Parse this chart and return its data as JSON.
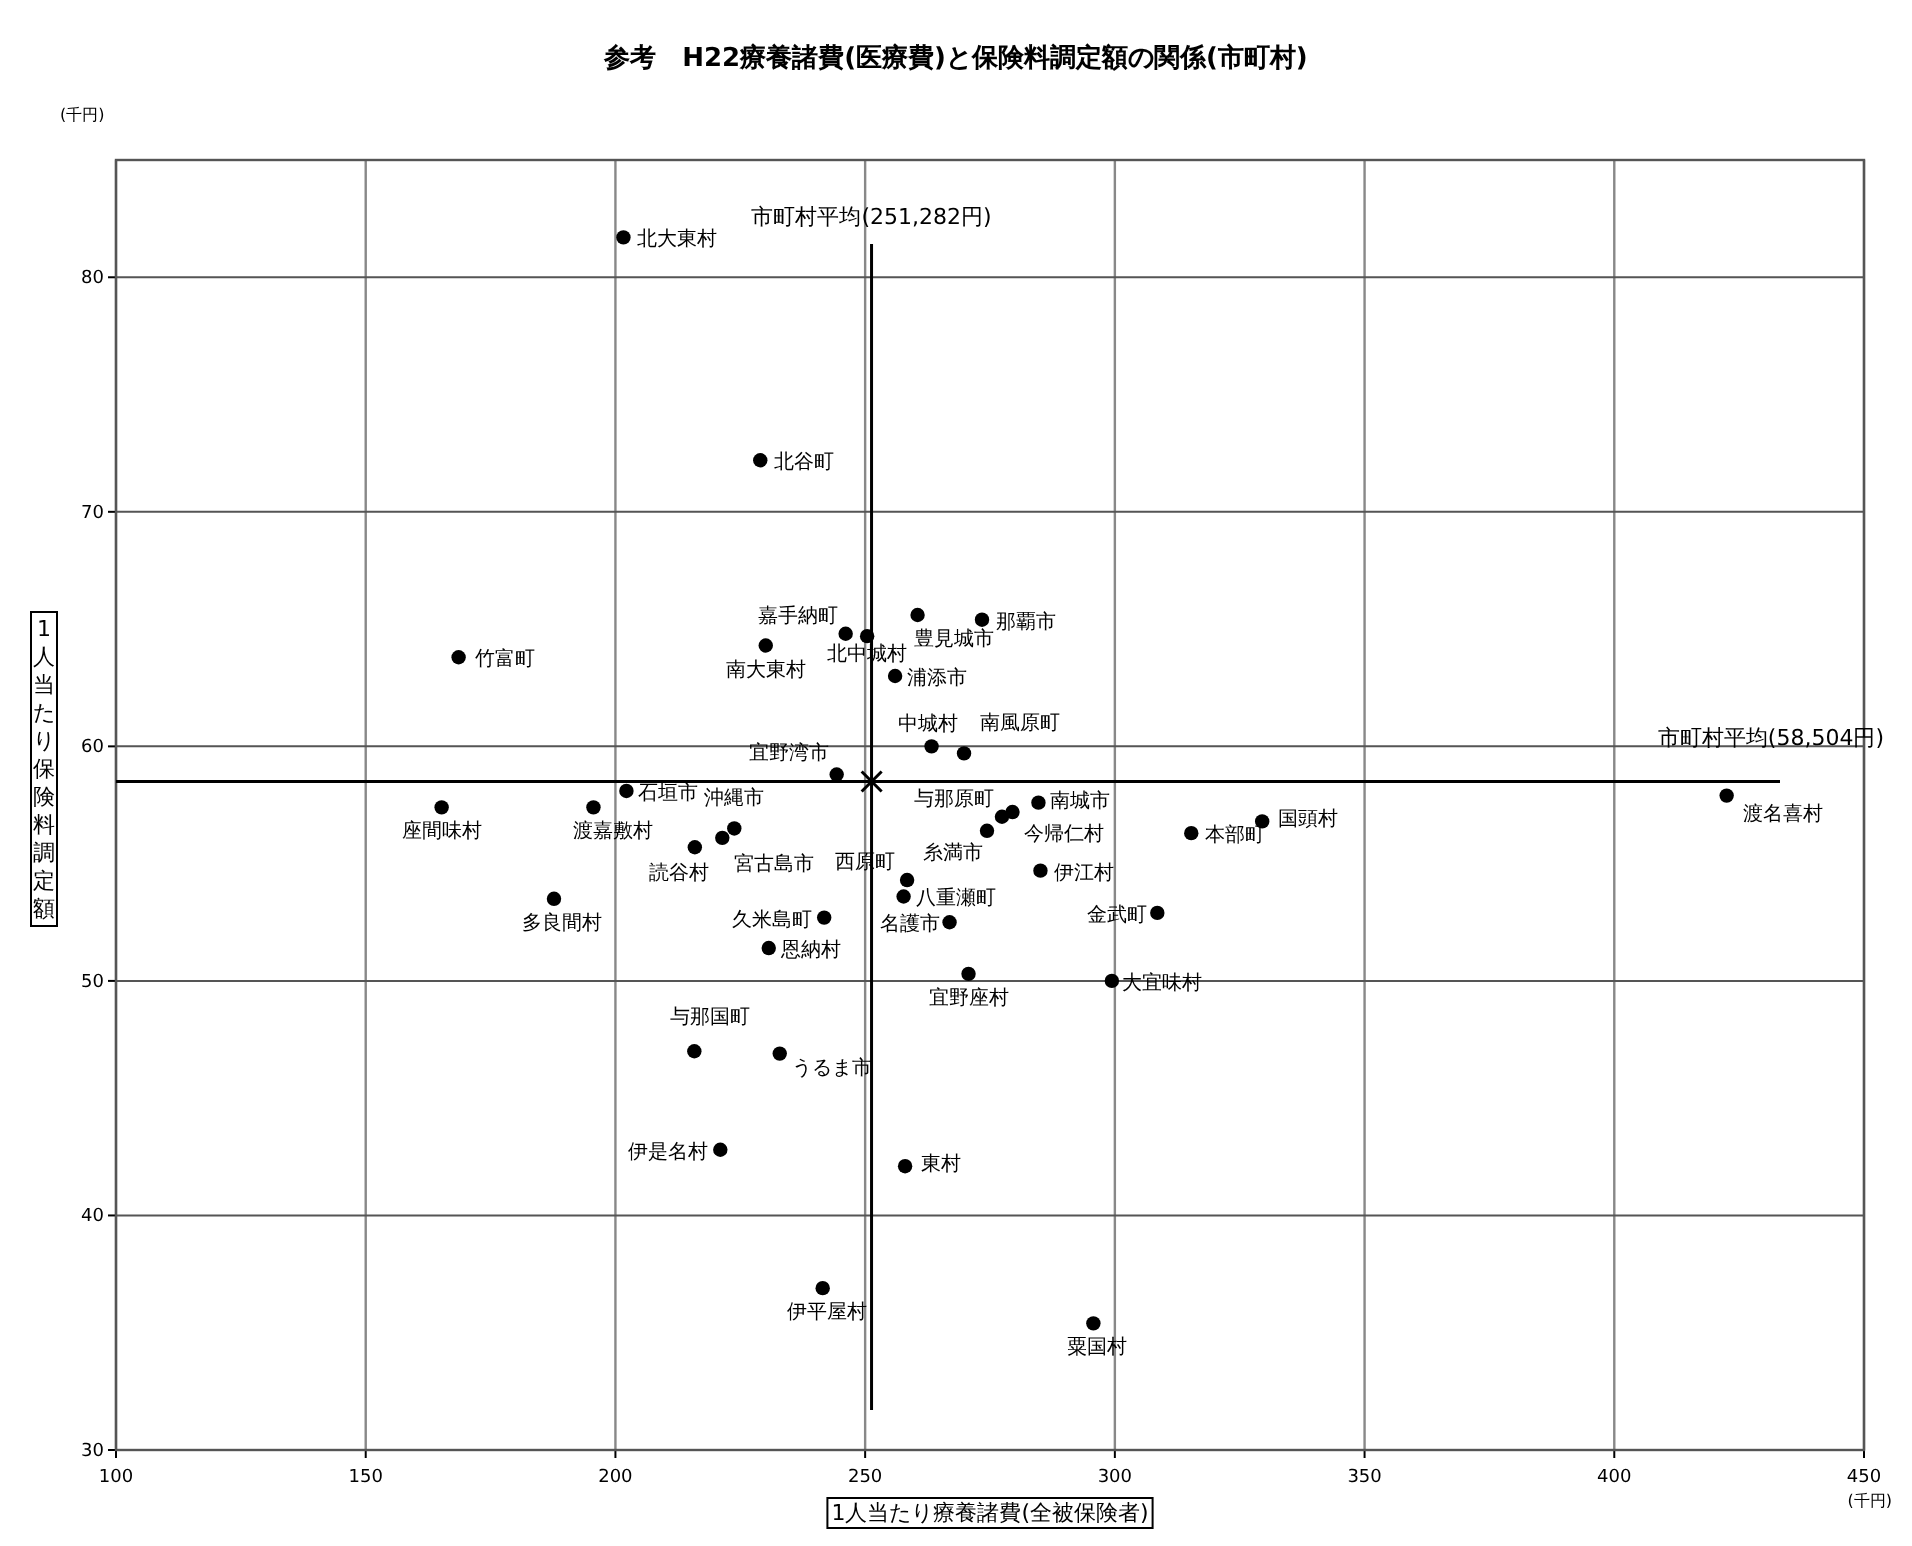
{
  "chart_data": {
    "type": "scatter",
    "title": "参考　H22療養諸費(医療費)と保険料調定額の関係(市町村)",
    "xlabel": "1人当たり療養諸費(全被保険者)",
    "ylabel": "1人当たり保険料調定額",
    "annotations": [
      "(千円)",
      "(千円)"
    ],
    "xlim": [
      100,
      450
    ],
    "xticks": [
      100,
      150,
      200,
      250,
      300,
      350,
      400,
      450
    ],
    "ylim": [
      30,
      85
    ],
    "yticks": [
      30,
      40,
      50,
      60,
      70,
      80
    ],
    "grid": true,
    "marker": "circle",
    "ref_lines": [
      {
        "axis": "x",
        "value": 251.282,
        "label": "市町村平均(251,282円)",
        "color": "#000000"
      },
      {
        "axis": "y",
        "value": 58.504,
        "label": "市町村平均(58,504円)",
        "color": "#000000"
      }
    ],
    "series": [
      {
        "name": "北大東村",
        "color": "#000000",
        "x": [
          201.6
        ],
        "values": [
          81.7
        ]
      },
      {
        "name": "北谷町",
        "color": "#000000",
        "x": [
          229.0
        ],
        "values": [
          72.2
        ]
      },
      {
        "name": "竹富町",
        "color": "#000000",
        "x": [
          168.6
        ],
        "values": [
          63.8
        ]
      },
      {
        "name": "嘉手納町",
        "color": "#000000",
        "x": [
          246.1
        ],
        "values": [
          64.8
        ]
      },
      {
        "name": "北中城村",
        "color": "#000000",
        "x": [
          250.4
        ],
        "values": [
          64.7
        ]
      },
      {
        "name": "南大東村",
        "color": "#000000",
        "x": [
          230.1
        ],
        "values": [
          64.3
        ]
      },
      {
        "name": "豊見城市",
        "color": "#000000",
        "x": [
          260.5
        ],
        "values": [
          65.6
        ]
      },
      {
        "name": "浦添市",
        "color": "#000000",
        "x": [
          256.0
        ],
        "values": [
          63.0
        ]
      },
      {
        "name": "中城村",
        "color": "#000000",
        "x": [
          263.3
        ],
        "values": [
          60.0
        ]
      },
      {
        "name": "南風原町",
        "color": "#000000",
        "x": [
          269.8
        ],
        "values": [
          59.7
        ]
      },
      {
        "name": "宜野湾市",
        "color": "#000000",
        "x": [
          244.3
        ],
        "values": [
          58.8
        ]
      },
      {
        "name": "那覇市",
        "color": "#000000",
        "x": [
          273.4
        ],
        "values": [
          65.4
        ]
      },
      {
        "name": "石垣市",
        "color": "#000000",
        "x": [
          202.2
        ],
        "values": [
          58.1
        ]
      },
      {
        "name": "与那原町",
        "color": "#000000",
        "x": [
          277.4
        ],
        "values": [
          57.0
        ]
      },
      {
        "name": "今帰仁村",
        "color": "#000000",
        "x": [
          279.5
        ],
        "values": [
          57.2
        ]
      },
      {
        "name": "糸満市",
        "color": "#000000",
        "x": [
          274.4
        ],
        "values": [
          56.4
        ]
      },
      {
        "name": "南城市",
        "color": "#000000",
        "x": [
          284.7
        ],
        "values": [
          57.6
        ]
      },
      {
        "name": "伊江村",
        "color": "#000000",
        "x": [
          285.1
        ],
        "values": [
          54.7
        ]
      },
      {
        "name": "本部町",
        "color": "#000000",
        "x": [
          315.3
        ],
        "values": [
          56.3
        ]
      },
      {
        "name": "国頭村",
        "color": "#000000",
        "x": [
          329.5
        ],
        "values": [
          56.8
        ]
      },
      {
        "name": "西原町",
        "color": "#000000",
        "x": [
          258.4
        ],
        "values": [
          54.3
        ]
      },
      {
        "name": "八重瀬町",
        "color": "#000000",
        "x": [
          257.7
        ],
        "values": [
          53.6
        ]
      },
      {
        "name": "名護市",
        "color": "#000000",
        "x": [
          266.9
        ],
        "values": [
          52.5
        ]
      },
      {
        "name": "金武町",
        "color": "#000000",
        "x": [
          308.5
        ],
        "values": [
          52.9
        ]
      },
      {
        "name": "宜野座村",
        "color": "#000000",
        "x": [
          270.7
        ],
        "values": [
          50.3
        ]
      },
      {
        "name": "大宜味村",
        "color": "#000000",
        "x": [
          299.4
        ],
        "values": [
          50.0
        ]
      },
      {
        "name": "渡名喜村",
        "color": "#000000",
        "x": [
          422.5
        ],
        "values": [
          57.9
        ]
      },
      {
        "name": "座間味村",
        "color": "#000000",
        "x": [
          165.2
        ],
        "values": [
          57.4
        ]
      },
      {
        "name": "渡嘉敷村",
        "color": "#000000",
        "x": [
          195.6
        ],
        "values": [
          57.4
        ]
      },
      {
        "name": "沖縄市",
        "color": "#000000",
        "x": [
          223.8
        ],
        "values": [
          56.5
        ]
      },
      {
        "name": "宮古島市",
        "color": "#000000",
        "x": [
          221.4
        ],
        "values": [
          56.1
        ]
      },
      {
        "name": "読谷村",
        "color": "#000000",
        "x": [
          215.9
        ],
        "values": [
          55.7
        ]
      },
      {
        "name": "多良間村",
        "color": "#000000",
        "x": [
          187.7
        ],
        "values": [
          53.5
        ]
      },
      {
        "name": "久米島町",
        "color": "#000000",
        "x": [
          241.8
        ],
        "values": [
          52.7
        ]
      },
      {
        "name": "恩納村",
        "color": "#000000",
        "x": [
          230.7
        ],
        "values": [
          51.4
        ]
      },
      {
        "name": "与那国町",
        "color": "#000000",
        "x": [
          215.8
        ],
        "values": [
          47.0
        ]
      },
      {
        "name": "うるま市",
        "color": "#000000",
        "x": [
          232.9
        ],
        "values": [
          46.9
        ]
      },
      {
        "name": "伊是名村",
        "color": "#000000",
        "x": [
          221.0
        ],
        "values": [
          42.8
        ]
      },
      {
        "name": "東村",
        "color": "#000000",
        "x": [
          258.0
        ],
        "values": [
          42.1
        ]
      },
      {
        "name": "伊平屋村",
        "color": "#000000",
        "x": [
          241.5
        ],
        "values": [
          36.9
        ]
      },
      {
        "name": "粟国村",
        "color": "#000000",
        "x": [
          295.7
        ],
        "values": [
          35.4
        ]
      },
      {
        "color": "#000000",
        "marker": "cross",
        "x": [
          251.3
        ],
        "values": [
          58.5
        ]
      }
    ]
  }
}
